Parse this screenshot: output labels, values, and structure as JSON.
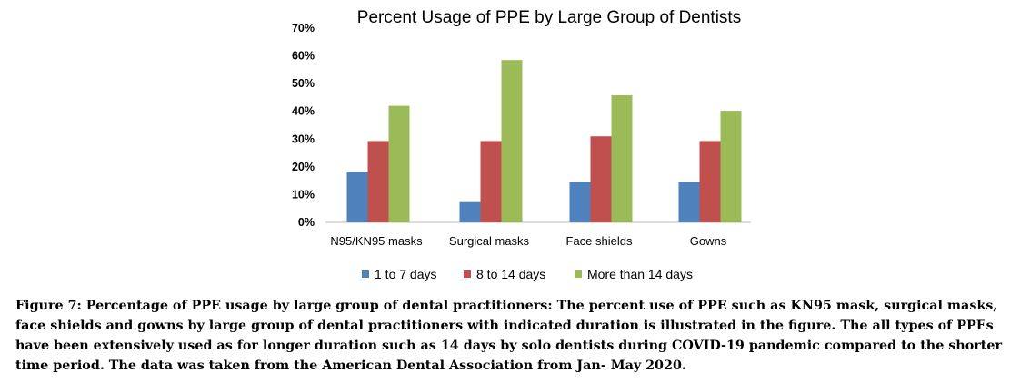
{
  "chart_data": {
    "type": "bar",
    "title": "Percent Usage of PPE by Large Group of Dentists",
    "categories": [
      "N95/KN95 masks",
      "Surgical masks",
      "Face shields",
      "Gowns"
    ],
    "series": [
      {
        "name": "1 to 7 days",
        "color": "#4f81bd",
        "values": [
          18.3,
          7.3,
          14.6,
          14.6
        ]
      },
      {
        "name": "8 to 14 days",
        "color": "#c0504d",
        "values": [
          29.3,
          29.3,
          31.0,
          29.3
        ]
      },
      {
        "name": "More than 14 days",
        "color": "#9bbb59",
        "values": [
          42.0,
          58.5,
          45.8,
          40.2
        ]
      }
    ],
    "ylim": [
      0,
      70
    ],
    "yticks": [
      "0%",
      "10%",
      "20%",
      "30%",
      "40%",
      "50%",
      "60%",
      "70%"
    ],
    "xlabel": "",
    "ylabel": "",
    "legend": "bottom",
    "grid": false
  },
  "caption": "Figure 7: Percentage of PPE usage by large group of dental practitioners: The percent use of PPE such as KN95 mask, surgical masks, face shields and gowns by large group of dental practitioners with indicated duration is illustrated in the figure. The all types of PPEs have been extensively used as for longer duration such as 14 days by solo dentists during COVID-19 pandemic compared to the shorter time period. The data was taken from the American Dental Association from Jan- May 2020."
}
